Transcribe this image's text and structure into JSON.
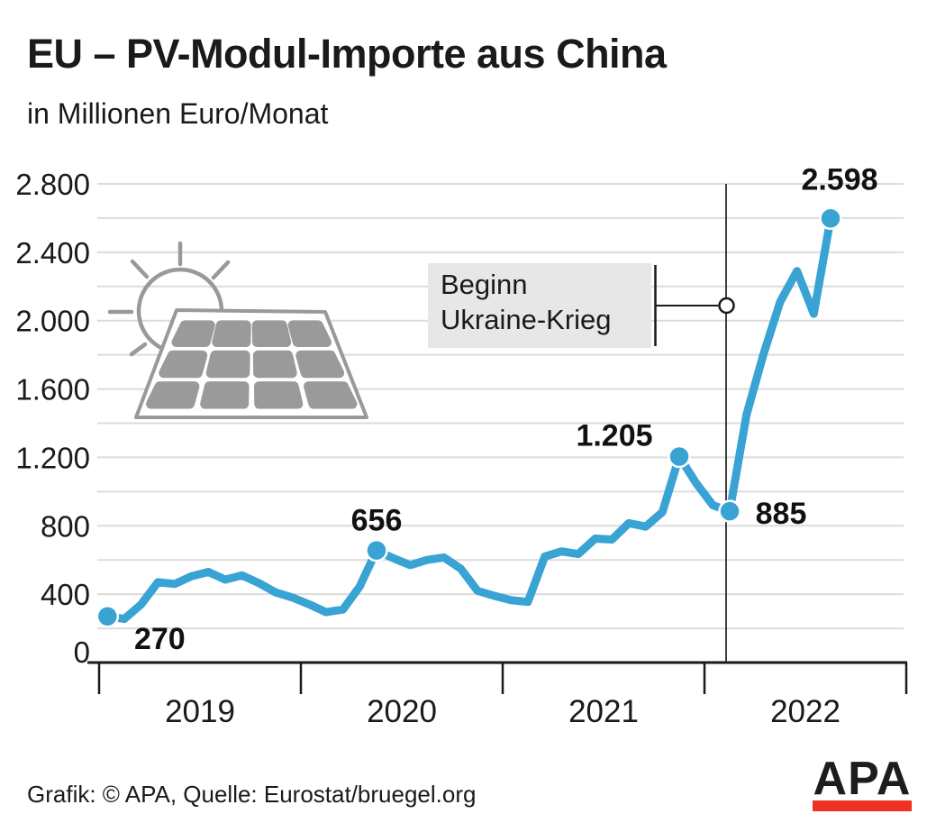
{
  "title": "EU – PV-Modul-Importe aus China",
  "subtitle": "in Millionen Euro/Monat",
  "footer": {
    "credit": "Grafik: © APA, Quelle: Eurostat/bruegel.org"
  },
  "logo": {
    "text": "APA",
    "text_color": "#1d1d1b",
    "bar_color": "#ee3124"
  },
  "annotation": {
    "line1": "Beginn",
    "line2": "Ukraine-Krieg",
    "marker_month": "Feb 2022"
  },
  "colors": {
    "line": "#39a3d4",
    "grid": "#dcdcdc",
    "axis": "#1a1a1a",
    "icon_gray": "#999999",
    "cell_gray": "#9a9a9a",
    "annotation_fill": "#e7e7e7",
    "text": "#1a1a1a"
  },
  "chart_data": {
    "type": "line",
    "title": "EU – PV-Modul-Importe aus China",
    "ylabel": "Millionen Euro/Monat",
    "ylim": [
      0,
      2800
    ],
    "y_gridline_step": 200,
    "y_tick_labels": [
      "0",
      "400",
      "800",
      "1.200",
      "1.600",
      "2.000",
      "2.400",
      "2.800"
    ],
    "x_year_labels": [
      "2019",
      "2020",
      "2021",
      "2022"
    ],
    "legend": "none",
    "grid": "horizontal",
    "months": [
      "Jan 2019",
      "Feb 2019",
      "Mär 2019",
      "Apr 2019",
      "Mai 2019",
      "Jun 2019",
      "Jul 2019",
      "Aug 2019",
      "Sep 2019",
      "Okt 2019",
      "Nov 2019",
      "Dez 2019",
      "Jan 2020",
      "Feb 2020",
      "Mär 2020",
      "Apr 2020",
      "Mai 2020",
      "Jun 2020",
      "Jul 2020",
      "Aug 2020",
      "Sep 2020",
      "Okt 2020",
      "Nov 2020",
      "Dez 2020",
      "Jan 2021",
      "Feb 2021",
      "Mär 2021",
      "Apr 2021",
      "Mai 2021",
      "Jun 2021",
      "Jul 2021",
      "Aug 2021",
      "Sep 2021",
      "Okt 2021",
      "Nov 2021",
      "Dez 2021",
      "Jan 2022",
      "Feb 2022",
      "Mär 2022",
      "Apr 2022",
      "Mai 2022",
      "Jun 2022",
      "Jul 2022",
      "Aug 2022"
    ],
    "values": [
      270,
      255,
      340,
      470,
      460,
      505,
      530,
      485,
      510,
      465,
      410,
      380,
      340,
      295,
      310,
      445,
      656,
      610,
      570,
      600,
      615,
      550,
      420,
      390,
      365,
      355,
      620,
      650,
      635,
      725,
      720,
      815,
      795,
      880,
      1205,
      1050,
      920,
      885,
      1450,
      1800,
      2110,
      2290,
      2040,
      2598
    ],
    "labeled_points": [
      {
        "index": 0,
        "month": "Jan 2019",
        "value": 270,
        "label": "270",
        "placement": "below-right"
      },
      {
        "index": 16,
        "month": "Mai 2020",
        "value": 656,
        "label": "656",
        "placement": "above"
      },
      {
        "index": 34,
        "month": "Nov 2021",
        "value": 1205,
        "label": "1.205",
        "placement": "above-left"
      },
      {
        "index": 37,
        "month": "Feb 2022",
        "value": 885,
        "label": "885",
        "placement": "right"
      },
      {
        "index": 43,
        "month": "Aug 2022",
        "value": 2598,
        "label": "2.598",
        "placement": "above-right"
      }
    ],
    "event_line": {
      "label": "Beginn Ukraine-Krieg",
      "month_index": 37
    }
  }
}
